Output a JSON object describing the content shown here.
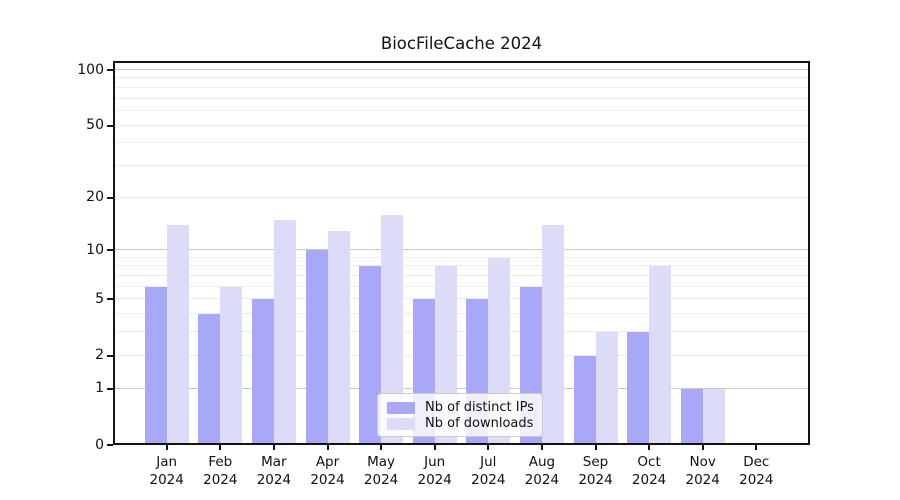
{
  "chart_data": {
    "type": "bar",
    "title": "BiocFileCache 2024",
    "categories": [
      "Jan 2024",
      "Feb 2024",
      "Mar 2024",
      "Apr 2024",
      "May 2024",
      "Jun 2024",
      "Jul 2024",
      "Aug 2024",
      "Sep 2024",
      "Oct 2024",
      "Nov 2024",
      "Dec 2024"
    ],
    "series": [
      {
        "name": "Nb of distinct IPs",
        "color": "#a8a7f8",
        "values": [
          6,
          4,
          5,
          10,
          8,
          5,
          5,
          6,
          2,
          3,
          1,
          0
        ]
      },
      {
        "name": "Nb of downloads",
        "color": "#dcdcf9",
        "values": [
          14,
          6,
          15,
          13,
          16,
          8,
          9,
          14,
          3,
          8,
          1,
          0
        ]
      }
    ],
    "xlabel": "",
    "ylabel": "",
    "yscale": "log1p",
    "ylim": [
      0,
      112
    ],
    "yticks": [
      100,
      50,
      20,
      10,
      5,
      2,
      1,
      0
    ],
    "grid": {
      "major": [
        1,
        10,
        100
      ],
      "minor": [
        2,
        3,
        4,
        5,
        6,
        7,
        8,
        9,
        20,
        30,
        40,
        50,
        60,
        70,
        80,
        90
      ]
    },
    "legend": {
      "position": "lower center",
      "entries": [
        "Nb of distinct IPs",
        "Nb of downloads"
      ]
    }
  },
  "colors": {
    "frame": "#141414",
    "text": "#111111",
    "grid_major": "#c9c9c9",
    "grid_minor": "#ececec",
    "legend_border": "#cccccc",
    "background": "#ffffff"
  }
}
